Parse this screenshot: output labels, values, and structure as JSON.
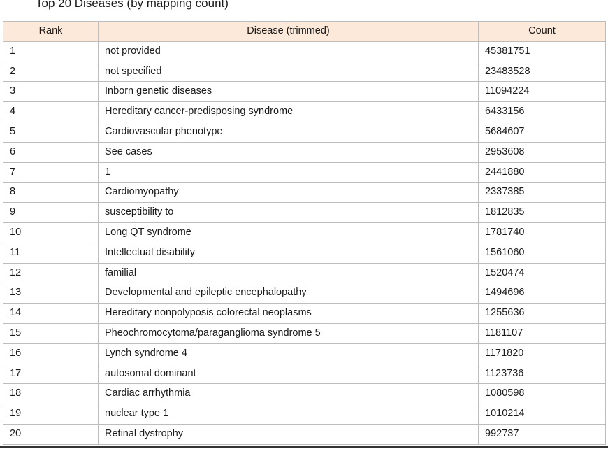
{
  "chart_data": {
    "type": "table",
    "title": "Top 20 Diseases (by mapping count)",
    "columns": [
      "Rank",
      "Disease (trimmed)",
      "Count"
    ],
    "rows": [
      [
        "1",
        "not provided",
        "45381751"
      ],
      [
        "2",
        "not specified",
        "23483528"
      ],
      [
        "3",
        "Inborn genetic diseases",
        "11094224"
      ],
      [
        "4",
        "Hereditary cancer-predisposing syndrome",
        "6433156"
      ],
      [
        "5",
        "Cardiovascular phenotype",
        "5684607"
      ],
      [
        "6",
        "See cases",
        "2953608"
      ],
      [
        "7",
        "1",
        "2441880"
      ],
      [
        "8",
        "Cardiomyopathy",
        "2337385"
      ],
      [
        "9",
        "susceptibility to",
        "1812835"
      ],
      [
        "10",
        "Long QT syndrome",
        "1781740"
      ],
      [
        "11",
        "Intellectual disability",
        "1561060"
      ],
      [
        "12",
        "familial",
        "1520474"
      ],
      [
        "13",
        "Developmental and epileptic encephalopathy",
        "1494696"
      ],
      [
        "14",
        "Hereditary nonpolyposis colorectal neoplasms",
        "1255636"
      ],
      [
        "15",
        "Pheochromocytoma/paraganglioma syndrome 5",
        "1181107"
      ],
      [
        "16",
        "Lynch syndrome 4",
        "1171820"
      ],
      [
        "17",
        "autosomal dominant",
        "1123736"
      ],
      [
        "18",
        "Cardiac arrhythmia",
        "1080598"
      ],
      [
        "19",
        "nuclear type 1",
        "1010214"
      ],
      [
        "20",
        "Retinal dystrophy",
        "992737"
      ]
    ]
  },
  "colors": {
    "header_background": "#fde9d9",
    "grid": "#bdbdbd",
    "text": "#1a1a1a"
  }
}
